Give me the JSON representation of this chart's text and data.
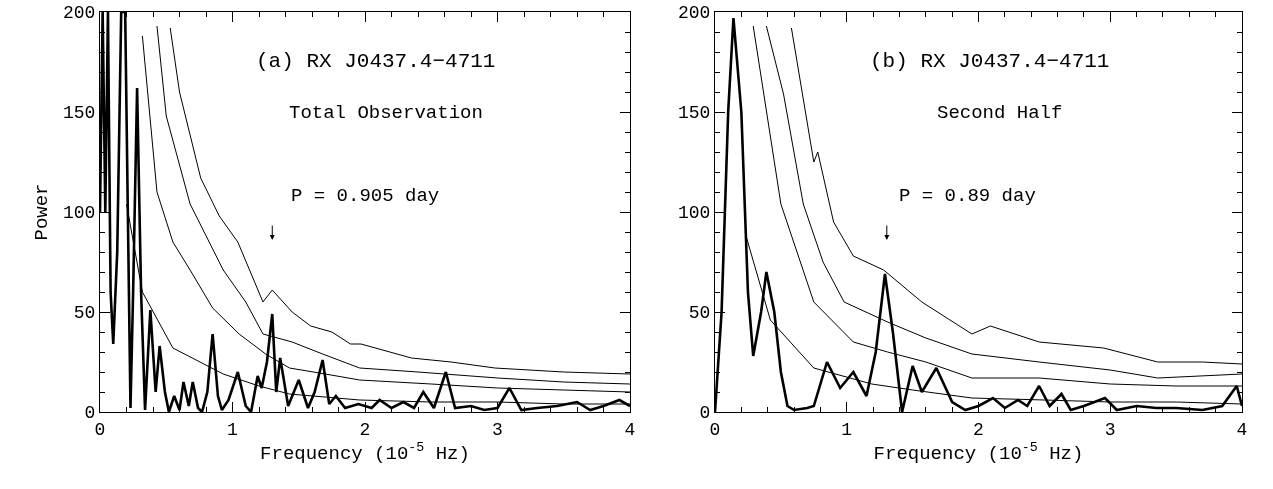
{
  "chart_data": [
    {
      "type": "line",
      "title": "(a) RX J0437.4−4711",
      "subtitle": "Total Observation",
      "xlabel": "Frequency (10$^{-5}$ Hz)",
      "ylabel": "Power",
      "xlim": [
        0,
        4
      ],
      "ylim": [
        0,
        200
      ],
      "xticks": [
        0,
        1,
        2,
        3,
        4
      ],
      "yticks": [
        0,
        50,
        100,
        150,
        200
      ],
      "grid": false,
      "marker": "none",
      "line_style": "solid",
      "annotations": [
        "P = 0.905 day"
      ],
      "series": [
        {
          "color": "#000000",
          "x": [
            0,
            0.02,
            0.04,
            0.06,
            0.08,
            0.1,
            0.13,
            0.16,
            0.19,
            0.21,
            0.23,
            0.25,
            0.28,
            0.31,
            0.34,
            0.38,
            0.42,
            0.45,
            0.49,
            0.52,
            0.56,
            0.6,
            0.63,
            0.67,
            0.7,
            0.74,
            0.77,
            0.81,
            0.85,
            0.89,
            0.92,
            0.97,
            1.04,
            1.1,
            1.14,
            1.19,
            1.22,
            1.26,
            1.3,
            1.33,
            1.36,
            1.42,
            1.5,
            1.57,
            1.62,
            1.68,
            1.73,
            1.78,
            1.85,
            1.95,
            2.05,
            2.11,
            2.2,
            2.29,
            2.37,
            2.44,
            2.52,
            2.61,
            2.68,
            2.8,
            2.9,
            3.0,
            3.09,
            3.18,
            3.3,
            3.45,
            3.6,
            3.7,
            3.8,
            3.92,
            4.0
          ],
          "values": [
            100,
            200,
            100,
            200,
            60,
            34,
            80,
            200,
            200,
            100,
            2,
            60,
            162,
            60,
            1,
            51,
            10,
            33,
            10,
            0,
            8,
            1,
            15,
            3,
            15,
            2,
            0,
            10,
            39,
            8,
            1,
            6,
            20,
            3,
            0,
            18,
            12,
            25,
            49,
            10,
            27,
            3,
            16,
            2,
            10,
            26,
            4,
            8,
            2,
            4,
            2,
            6,
            2,
            5,
            2,
            10,
            2,
            20,
            2,
            3,
            1,
            2,
            12,
            1,
            2,
            3,
            5,
            1,
            3,
            6,
            3
          ]
        },
        {
          "color": "#000000",
          "x": [
            0.53,
            0.6,
            0.76,
            0.9,
            1.04,
            1.23,
            1.3,
            1.45,
            1.59,
            1.75,
            1.89,
            1.97,
            2.35,
            2.65,
            2.98,
            3.5,
            4.0
          ],
          "values": [
            192,
            160,
            117,
            98,
            85,
            55,
            61,
            50,
            43,
            40,
            34,
            34,
            27,
            25,
            22,
            20,
            19
          ]
        },
        {
          "color": "#000000",
          "x": [
            0.43,
            0.5,
            0.68,
            0.93,
            1.1,
            1.23,
            1.45,
            1.68,
            1.96,
            2.4,
            3.0,
            3.5,
            4.0
          ],
          "values": [
            193,
            148,
            104,
            71,
            55,
            39,
            35,
            29,
            22,
            20,
            17,
            15,
            14
          ]
        },
        {
          "color": "#000000",
          "x": [
            0.32,
            0.43,
            0.55,
            0.68,
            0.85,
            1.05,
            1.25,
            1.43,
            1.7,
            1.96,
            2.5,
            3.0,
            3.5,
            4.0
          ],
          "values": [
            188,
            110,
            85,
            71,
            52,
            39,
            29,
            22,
            19,
            16,
            14,
            12,
            11,
            10
          ]
        },
        {
          "color": "#000000",
          "x": [
            0.2,
            0.32,
            0.55,
            0.93,
            1.2,
            1.43,
            1.96,
            2.5,
            3.0,
            3.5,
            4.0
          ],
          "values": [
            104,
            60,
            32,
            19,
            13,
            9,
            6,
            5,
            5,
            4,
            4
          ]
        }
      ]
    },
    {
      "type": "line",
      "title": "(b) RX J0437.4−4711",
      "subtitle": "Second Half",
      "xlabel": "Frequency (10$^{-5}$ Hz)",
      "xlim": [
        0,
        4
      ],
      "ylim": [
        0,
        200
      ],
      "xticks": [
        0,
        1,
        2,
        3,
        4
      ],
      "yticks": [
        0,
        50,
        100,
        150,
        200
      ],
      "grid": false,
      "marker": "none",
      "line_style": "solid",
      "annotations": [
        "P = 0.89 day"
      ],
      "series": [
        {
          "color": "#000000",
          "x": [
            0,
            0.05,
            0.1,
            0.14,
            0.2,
            0.25,
            0.29,
            0.35,
            0.39,
            0.45,
            0.5,
            0.55,
            0.6,
            0.7,
            0.75,
            0.85,
            0.95,
            1.05,
            1.15,
            1.22,
            1.29,
            1.35,
            1.42,
            1.5,
            1.57,
            1.68,
            1.8,
            1.9,
            2.0,
            2.11,
            2.2,
            2.3,
            2.37,
            2.46,
            2.54,
            2.63,
            2.7,
            2.8,
            2.96,
            3.05,
            3.2,
            3.35,
            3.5,
            3.7,
            3.85,
            3.96,
            4.0
          ],
          "values": [
            0,
            50,
            150,
            197,
            150,
            60,
            28,
            50,
            70,
            50,
            20,
            3,
            1,
            2,
            3,
            25,
            12,
            20,
            8,
            30,
            69,
            40,
            0,
            23,
            10,
            22,
            5,
            1,
            3,
            7,
            2,
            6,
            3,
            13,
            3,
            9,
            1,
            3,
            7,
            1,
            3,
            2,
            2,
            1,
            3,
            13,
            3
          ]
        },
        {
          "color": "#000000",
          "x": [
            0.58,
            0.75,
            0.78,
            0.9,
            1.05,
            1.28,
            1.57,
            1.95,
            2.09,
            2.46,
            2.95,
            3.36,
            3.7,
            4.0
          ],
          "values": [
            192,
            125,
            130,
            95,
            78,
            71,
            55,
            39,
            43,
            35,
            32,
            25,
            25,
            24
          ]
        },
        {
          "color": "#000000",
          "x": [
            0.39,
            0.52,
            0.67,
            0.82,
            0.98,
            1.31,
            1.6,
            1.95,
            2.46,
            3.0,
            3.36,
            4.0
          ],
          "values": [
            193,
            159,
            104,
            75,
            55,
            45,
            37,
            29,
            25,
            21,
            17,
            19
          ]
        },
        {
          "color": "#000000",
          "x": [
            0.29,
            0.5,
            0.75,
            1.05,
            1.31,
            1.6,
            1.95,
            2.46,
            3.0,
            3.5,
            4.0
          ],
          "values": [
            193,
            104,
            55,
            35,
            30,
            25,
            17,
            17,
            14,
            13,
            13
          ]
        },
        {
          "color": "#000000",
          "x": [
            0.24,
            0.42,
            0.75,
            1.19,
            1.5,
            1.95,
            2.5,
            3.0,
            3.5,
            4.0
          ],
          "values": [
            87,
            46,
            22,
            14,
            11,
            7,
            6,
            5,
            5,
            4
          ]
        }
      ]
    }
  ]
}
